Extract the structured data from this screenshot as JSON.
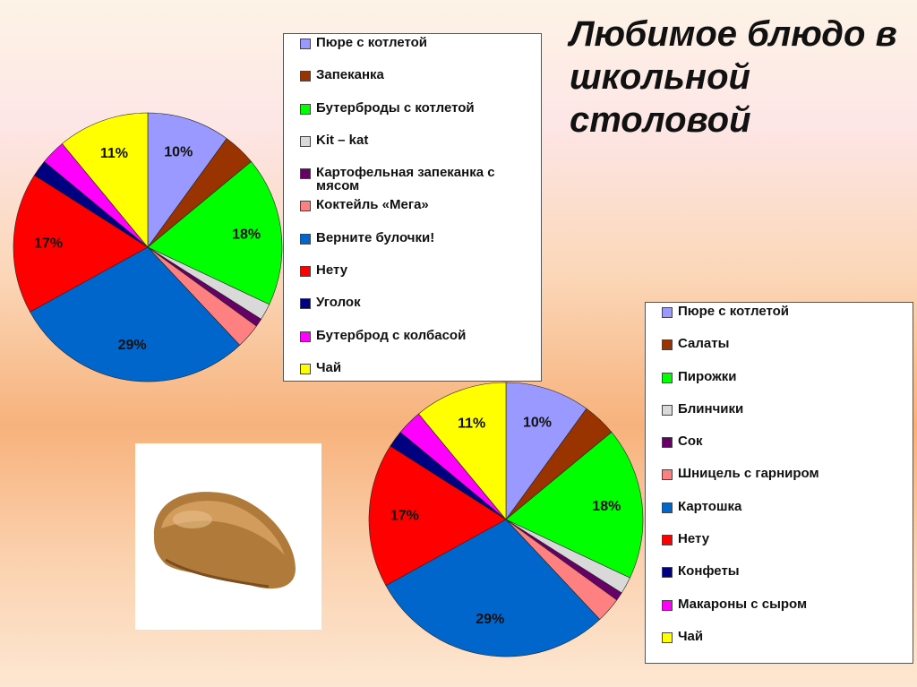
{
  "title": "Любимое блюдо в школьной столовой",
  "chart_data": [
    {
      "type": "pie",
      "categories": [
        "Пюре с котлетой",
        "Запеканка",
        "Бутерброды с котлетой",
        "Kit – kat",
        "Картофельная запеканка с мясом",
        "Коктейль «Мега»",
        "Верните булочки!",
        "Нету",
        "Уголок",
        "Бутерброд с колбасой",
        "Чай"
      ],
      "values": [
        10,
        4,
        18,
        2,
        1,
        3,
        29,
        17,
        2,
        3,
        11
      ],
      "value_labels": [
        "10%",
        null,
        "18%",
        null,
        null,
        null,
        "29%",
        "17%",
        null,
        null,
        "11%"
      ],
      "colors": [
        "#9999ff",
        "#993300",
        "#00ff00",
        "#d9d9d9",
        "#660066",
        "#ff8080",
        "#0066cc",
        "#ff0000",
        "#000080",
        "#ff00ff",
        "#ffff00"
      ]
    },
    {
      "type": "pie",
      "categories": [
        "Пюре с котлетой",
        "Салаты",
        "Пирожки",
        "Блинчики",
        "Сок",
        "Шницель с гарниром",
        "Картошка",
        "Нету",
        "Конфеты",
        "Макароны с сыром",
        "Чай"
      ],
      "values": [
        10,
        4,
        18,
        2,
        1,
        3,
        29,
        17,
        2,
        3,
        11
      ],
      "value_labels": [
        "10%",
        null,
        "18%",
        null,
        null,
        null,
        "29%",
        "17%",
        null,
        null,
        "11%"
      ],
      "colors": [
        "#9999ff",
        "#993300",
        "#00ff00",
        "#d9d9d9",
        "#660066",
        "#ff8080",
        "#0066cc",
        "#ff0000",
        "#000080",
        "#ff00ff",
        "#ffff00"
      ]
    }
  ]
}
